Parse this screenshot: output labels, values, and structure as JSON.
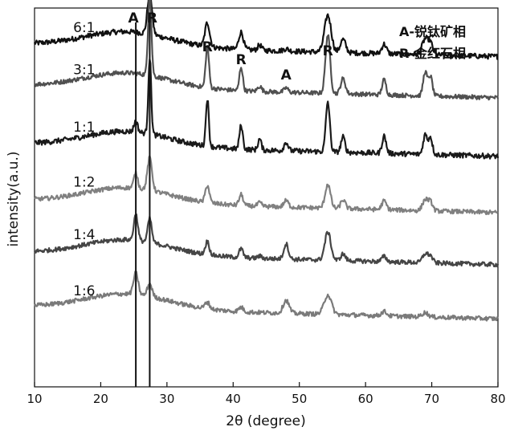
{
  "chart_data": {
    "type": "line",
    "xlabel": "2θ (degree)",
    "ylabel": "intensity(a.u.)",
    "xlim": [
      10,
      80
    ],
    "xticks": [
      "10",
      "20",
      "30",
      "40",
      "50",
      "60",
      "70",
      "80"
    ],
    "vlines": [
      25.3,
      27.4
    ],
    "legend": [
      "A-锐钛矿相",
      "R-金红石相"
    ],
    "peak_labels": [
      {
        "text": "A",
        "x": 25.3
      },
      {
        "text": "R",
        "x": 27.4
      },
      {
        "text": "R",
        "x": 36.1
      },
      {
        "text": "R",
        "x": 41.2
      },
      {
        "text": "A",
        "x": 48.0
      },
      {
        "text": "R",
        "x": 54.3
      }
    ],
    "series": [
      {
        "name": "6:1",
        "color": "#111111",
        "baseline": 7.9,
        "noise": 0.06,
        "peaks": [
          [
            25.3,
            0.0,
            0.3
          ],
          [
            27.4,
            0.95,
            0.35
          ],
          [
            36.1,
            0.55,
            0.35
          ],
          [
            41.2,
            0.4,
            0.35
          ],
          [
            44.0,
            0.12,
            0.3
          ],
          [
            48.0,
            0.05,
            0.4
          ],
          [
            54.3,
            0.85,
            0.5
          ],
          [
            56.6,
            0.3,
            0.4
          ],
          [
            62.8,
            0.22,
            0.35
          ],
          [
            69.0,
            0.35,
            0.45
          ],
          [
            69.8,
            0.25,
            0.35
          ]
        ]
      },
      {
        "name": "3:1",
        "color": "#505050",
        "baseline": 6.95,
        "noise": 0.05,
        "peaks": [
          [
            25.3,
            0.0,
            0.3
          ],
          [
            27.4,
            1.9,
            0.25
          ],
          [
            36.1,
            0.95,
            0.25
          ],
          [
            41.2,
            0.55,
            0.25
          ],
          [
            44.0,
            0.12,
            0.3
          ],
          [
            48.0,
            0.1,
            0.3
          ],
          [
            54.3,
            1.35,
            0.35
          ],
          [
            56.6,
            0.35,
            0.35
          ],
          [
            62.8,
            0.35,
            0.3
          ],
          [
            69.0,
            0.55,
            0.3
          ],
          [
            69.8,
            0.45,
            0.3
          ]
        ]
      },
      {
        "name": "1:1",
        "color": "#1a1a1a",
        "baseline": 5.6,
        "noise": 0.06,
        "peaks": [
          [
            25.3,
            0.25,
            0.28
          ],
          [
            27.4,
            1.75,
            0.22
          ],
          [
            36.1,
            1.1,
            0.22
          ],
          [
            41.2,
            0.55,
            0.25
          ],
          [
            44.0,
            0.25,
            0.25
          ],
          [
            48.0,
            0.2,
            0.3
          ],
          [
            54.3,
            1.15,
            0.3
          ],
          [
            56.6,
            0.35,
            0.3
          ],
          [
            62.8,
            0.4,
            0.3
          ],
          [
            69.0,
            0.45,
            0.3
          ],
          [
            69.8,
            0.4,
            0.3
          ]
        ]
      },
      {
        "name": "1:2",
        "color": "#808080",
        "baseline": 4.3,
        "noise": 0.05,
        "peaks": [
          [
            25.3,
            0.35,
            0.3
          ],
          [
            27.4,
            0.75,
            0.35
          ],
          [
            36.1,
            0.4,
            0.3
          ],
          [
            41.2,
            0.25,
            0.3
          ],
          [
            44.0,
            0.08,
            0.3
          ],
          [
            48.0,
            0.15,
            0.35
          ],
          [
            54.3,
            0.55,
            0.4
          ],
          [
            56.6,
            0.2,
            0.35
          ],
          [
            62.8,
            0.2,
            0.35
          ],
          [
            69.0,
            0.25,
            0.4
          ],
          [
            69.8,
            0.2,
            0.35
          ]
        ]
      },
      {
        "name": "1:4",
        "color": "#454545",
        "baseline": 3.1,
        "noise": 0.05,
        "peaks": [
          [
            25.3,
            0.6,
            0.3
          ],
          [
            27.4,
            0.55,
            0.3
          ],
          [
            36.1,
            0.3,
            0.3
          ],
          [
            41.2,
            0.2,
            0.3
          ],
          [
            44.0,
            0.05,
            0.3
          ],
          [
            48.0,
            0.35,
            0.35
          ],
          [
            54.3,
            0.65,
            0.45
          ],
          [
            56.6,
            0.15,
            0.35
          ],
          [
            62.8,
            0.12,
            0.35
          ],
          [
            69.0,
            0.2,
            0.4
          ],
          [
            69.8,
            0.15,
            0.35
          ]
        ]
      },
      {
        "name": "1:6",
        "color": "#7a7a7a",
        "baseline": 1.85,
        "noise": 0.05,
        "peaks": [
          [
            25.3,
            0.5,
            0.35
          ],
          [
            27.4,
            0.3,
            0.35
          ],
          [
            36.1,
            0.15,
            0.35
          ],
          [
            41.2,
            0.1,
            0.35
          ],
          [
            48.0,
            0.3,
            0.45
          ],
          [
            54.3,
            0.45,
            0.55
          ],
          [
            62.8,
            0.1,
            0.4
          ],
          [
            69.0,
            0.1,
            0.45
          ]
        ]
      }
    ]
  }
}
